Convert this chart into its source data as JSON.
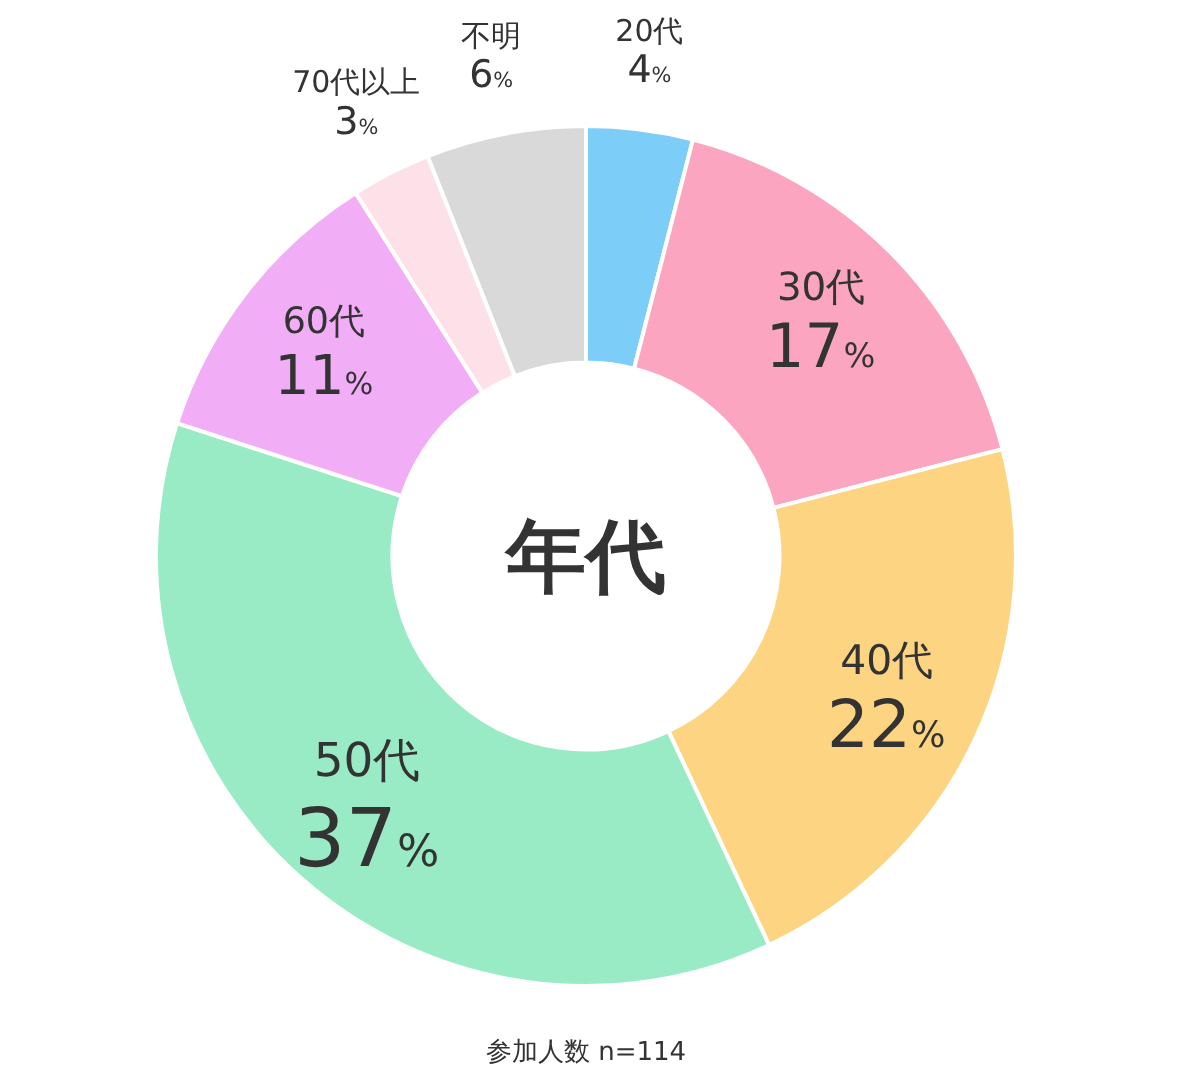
{
  "chart_data": {
    "type": "donut",
    "title": "年代",
    "categories": [
      "20代",
      "30代",
      "40代",
      "50代",
      "60代",
      "70代以上",
      "不明"
    ],
    "values": [
      4,
      17,
      22,
      37,
      11,
      3,
      6
    ],
    "value_labels": [
      "4%",
      "17%",
      "22%",
      "37%",
      "11%",
      "3%",
      "6%"
    ],
    "colors": [
      "#7ccdf7",
      "#fca5c0",
      "#fdd482",
      "#98ebc4",
      "#f2adf7",
      "#fde0e8",
      "#d9d9d9"
    ],
    "annotations": [
      "参加人数 n=114"
    ]
  }
}
